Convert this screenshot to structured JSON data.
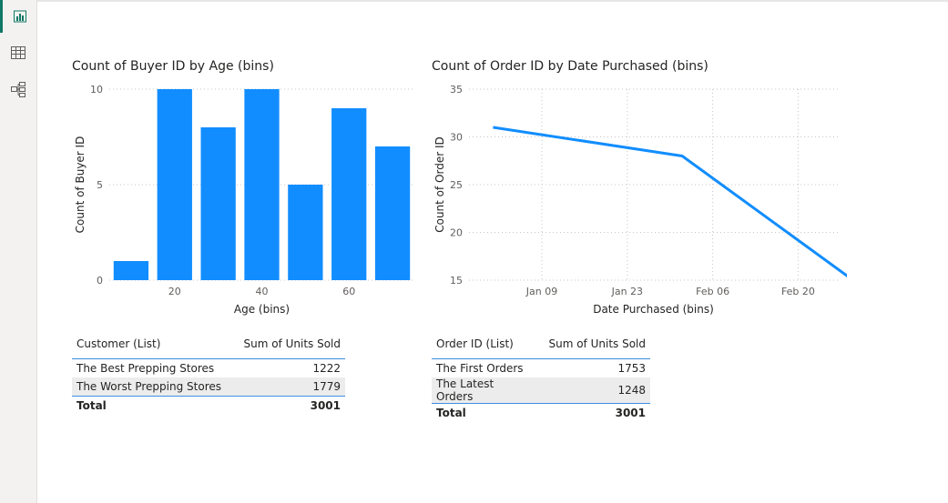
{
  "sidebar": {
    "items": [
      {
        "name": "report-view",
        "icon": "bar-chart-icon",
        "active": true
      },
      {
        "name": "table-view",
        "icon": "table-icon",
        "active": false
      },
      {
        "name": "model-view",
        "icon": "model-icon",
        "active": false
      }
    ]
  },
  "colors": {
    "accent": "#118dff",
    "table_border": "#3e8ede",
    "active_nav": "#117865"
  },
  "chart1": {
    "title": "Count of Buyer ID by Age (bins)"
  },
  "chart2": {
    "title": "Count of Order ID by Date Purchased (bins)"
  },
  "chart_data": [
    {
      "type": "bar",
      "title": "Count of Buyer ID by Age (bins)",
      "xlabel": "Age (bins)",
      "ylabel": "Count of Buyer ID",
      "x": [
        10,
        20,
        30,
        40,
        50,
        60,
        70
      ],
      "values": [
        1,
        10,
        8,
        10,
        5,
        9,
        7
      ],
      "xticks": [
        20,
        40,
        60
      ],
      "yticks": [
        0,
        5,
        10
      ],
      "ylim": [
        0,
        10
      ],
      "grid": true
    },
    {
      "type": "line",
      "title": "Count of Order ID by Date Purchased (bins)",
      "xlabel": "Date Purchased (bins)",
      "ylabel": "Count of Order ID",
      "x": [
        "Jan 01",
        "Feb 01",
        "Mar 01"
      ],
      "values": [
        31,
        28,
        15
      ],
      "xticks": [
        "Jan 09",
        "Jan 23",
        "Feb 06",
        "Feb 20"
      ],
      "yticks": [
        15,
        20,
        25,
        30,
        35
      ],
      "ylim": [
        15,
        35
      ],
      "grid": true
    }
  ],
  "table1": {
    "headers": [
      "Customer (List)",
      "Sum of Units Sold"
    ],
    "rows": [
      [
        "The Best Prepping Stores",
        "1222"
      ],
      [
        "The Worst Prepping Stores",
        "1779"
      ]
    ],
    "total": [
      "Total",
      "3001"
    ]
  },
  "table2": {
    "headers": [
      "Order ID (List)",
      "Sum of Units Sold"
    ],
    "rows": [
      [
        "The First Orders",
        "1753"
      ],
      [
        "The Latest Orders",
        "1248"
      ]
    ],
    "total": [
      "Total",
      "3001"
    ]
  }
}
